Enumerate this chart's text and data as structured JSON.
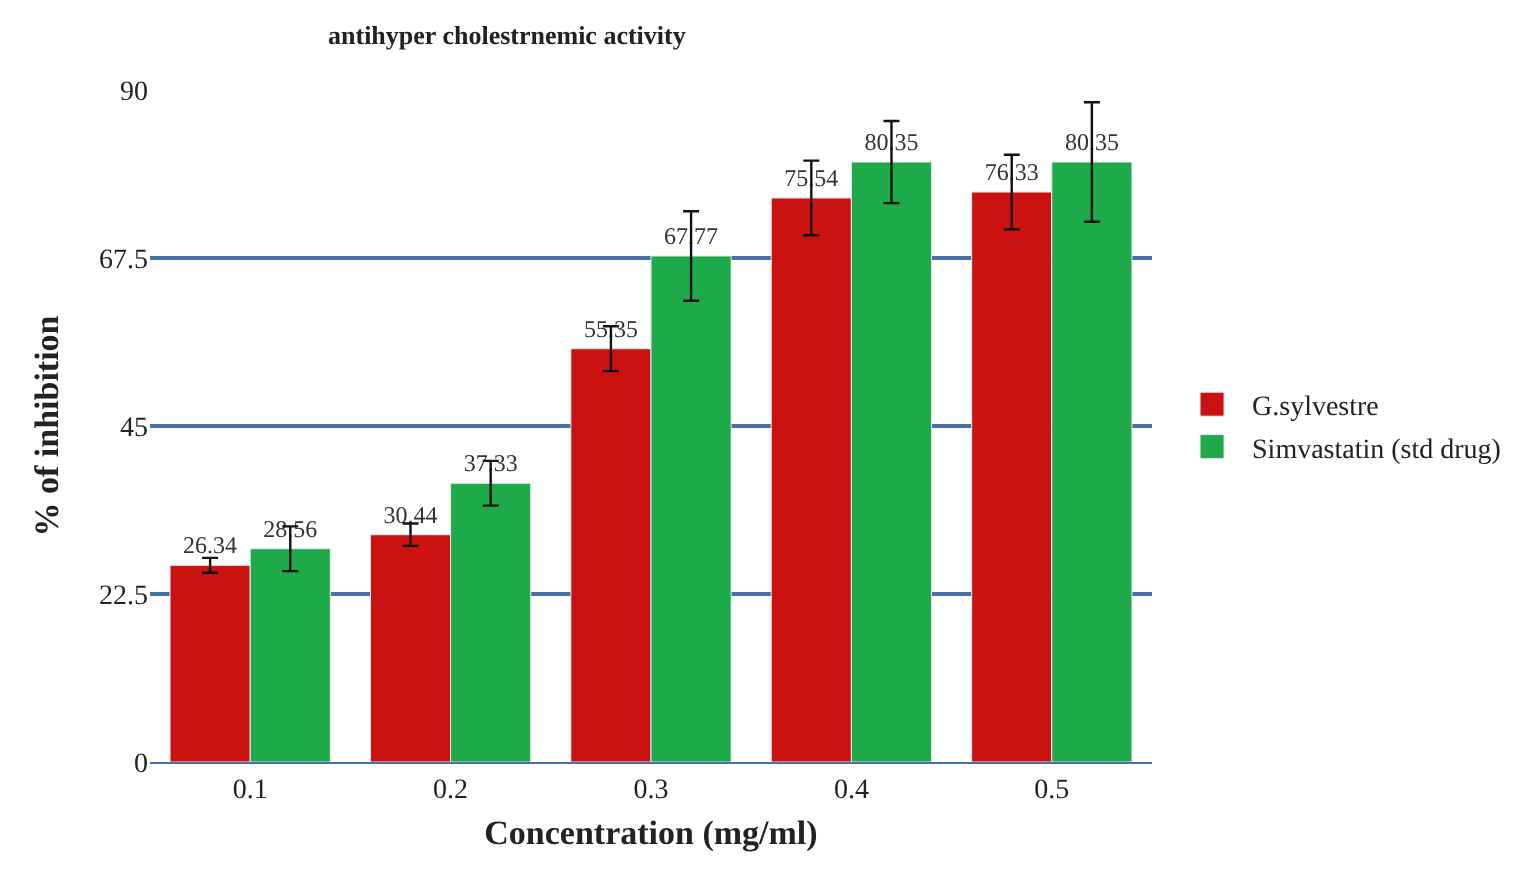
{
  "chart_data": {
    "type": "bar",
    "title": "antihyper cholestrnemic activity",
    "xlabel": "Concentration (mg/ml)",
    "ylabel": "% of inhibition",
    "categories": [
      "0.1",
      "0.2",
      "0.3",
      "0.4",
      "0.5"
    ],
    "series": [
      {
        "name": "G.sylvestre",
        "color": "#cc1111",
        "values": [
          26.34,
          30.44,
          55.35,
          75.54,
          76.33
        ],
        "errors": [
          1,
          1.5,
          3,
          5,
          5
        ]
      },
      {
        "name": "Simvastatin (std drug)",
        "color": "#1faa4a",
        "values": [
          28.56,
          37.33,
          67.77,
          80.35,
          80.35
        ],
        "errors": [
          3,
          3,
          6,
          5.5,
          8
        ]
      }
    ],
    "ylim": [
      0,
      90
    ],
    "yticks": [
      0,
      22.5,
      45,
      67.5,
      90
    ],
    "grid": "y",
    "legend": "right",
    "data_labels": true
  }
}
